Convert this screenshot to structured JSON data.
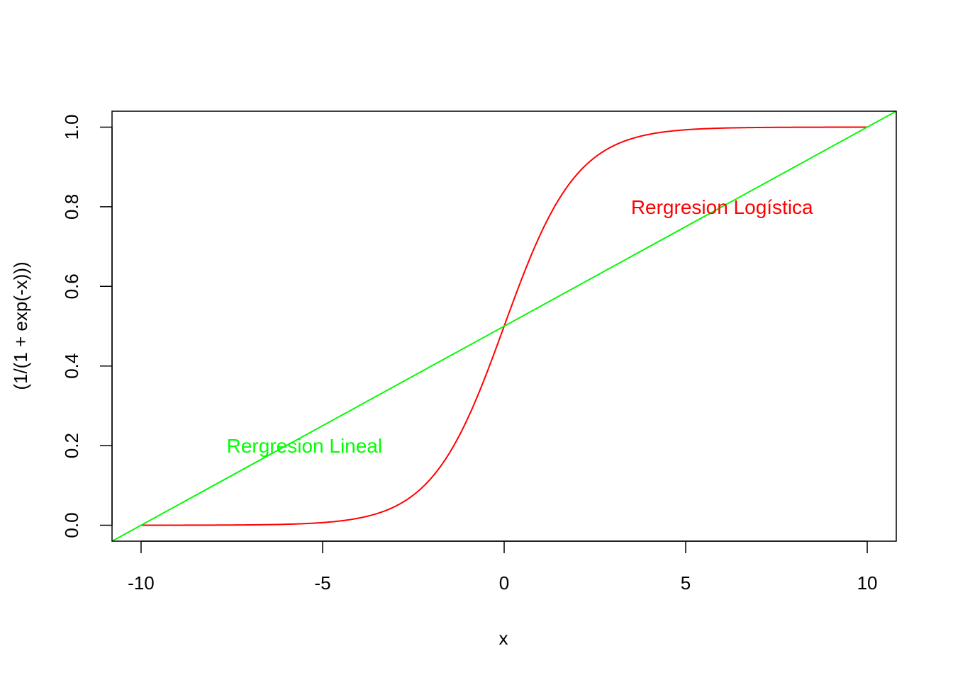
{
  "chart_data": {
    "type": "line",
    "xlabel": "x",
    "ylabel": "(1/(1 + exp(-x)))",
    "xlim": [
      -10.8,
      10.8
    ],
    "ylim": [
      -0.04,
      1.04
    ],
    "x_ticks": [
      -10,
      -5,
      0,
      5,
      10
    ],
    "x_tick_labels": [
      "-10",
      "-5",
      "0",
      "5",
      "10"
    ],
    "y_ticks": [
      0.0,
      0.2,
      0.4,
      0.6,
      0.8,
      1.0
    ],
    "y_tick_labels": [
      "0.0",
      "0.2",
      "0.4",
      "0.6",
      "0.8",
      "1.0"
    ],
    "grid": false,
    "series": [
      {
        "color": "#ff0000",
        "function": "1/(1+exp(-x))",
        "x": [
          -10,
          -8,
          -6,
          -5,
          -4,
          -3,
          -2,
          -1.5,
          -1,
          -0.5,
          0,
          0.5,
          1,
          1.5,
          2,
          3,
          4,
          5,
          6,
          8,
          10
        ],
        "y": [
          4.54e-05,
          0.000335,
          0.00247,
          0.00669,
          0.018,
          0.0474,
          0.1192,
          0.1824,
          0.2689,
          0.3775,
          0.5,
          0.6225,
          0.7311,
          0.8176,
          0.8808,
          0.9526,
          0.982,
          0.9933,
          0.9975,
          0.9997,
          0.99995
        ]
      },
      {
        "color": "#00ff00",
        "x": [
          -11,
          11
        ],
        "y": [
          -0.05,
          1.05
        ]
      }
    ],
    "annotations": [
      {
        "text": "Rergresion Logística",
        "x": 6.0,
        "y": 0.8,
        "color": "#ff0000"
      },
      {
        "text": "Rergresion Lineal",
        "x": -5.5,
        "y": 0.2,
        "color": "#00ff00"
      }
    ]
  }
}
